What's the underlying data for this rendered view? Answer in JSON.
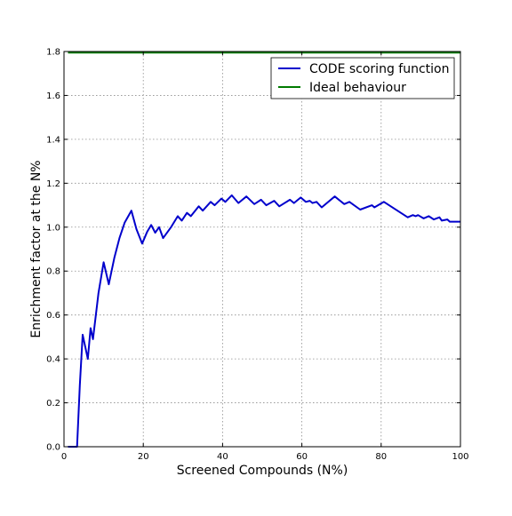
{
  "chart_data": {
    "type": "line",
    "title": "",
    "xlabel": "Screened Compounds (N%)",
    "ylabel": "Enrichment factor at the N%",
    "xlim": [
      0,
      100
    ],
    "ylim": [
      0,
      1.8
    ],
    "xticks": [
      0,
      20,
      40,
      60,
      80,
      100
    ],
    "yticks": [
      0.0,
      0.2,
      0.4,
      0.6,
      0.8,
      1.0,
      1.2,
      1.4,
      1.6,
      1.8
    ],
    "grid": true,
    "legend_position": "top-right",
    "series": [
      {
        "name": "CODE scoring function",
        "color": "#0000cc",
        "points": [
          [
            1,
            0.0
          ],
          [
            3.3,
            0.0
          ],
          [
            4,
            0.28
          ],
          [
            4.7,
            0.51
          ],
          [
            6,
            0.4
          ],
          [
            6.7,
            0.54
          ],
          [
            7.3,
            0.49
          ],
          [
            8.7,
            0.7
          ],
          [
            10,
            0.84
          ],
          [
            11.3,
            0.74
          ],
          [
            12.7,
            0.86
          ],
          [
            14,
            0.95
          ],
          [
            15.3,
            1.02
          ],
          [
            17,
            1.075
          ],
          [
            18.3,
            0.99
          ],
          [
            19.7,
            0.925
          ],
          [
            21,
            0.98
          ],
          [
            22,
            1.01
          ],
          [
            23,
            0.975
          ],
          [
            24,
            1.0
          ],
          [
            25,
            0.95
          ],
          [
            27,
            1.0
          ],
          [
            28.7,
            1.05
          ],
          [
            29.7,
            1.03
          ],
          [
            31,
            1.065
          ],
          [
            32,
            1.05
          ],
          [
            34,
            1.095
          ],
          [
            35,
            1.075
          ],
          [
            37,
            1.115
          ],
          [
            38,
            1.1
          ],
          [
            39.7,
            1.13
          ],
          [
            40.7,
            1.115
          ],
          [
            42.3,
            1.145
          ],
          [
            44,
            1.11
          ],
          [
            46,
            1.14
          ],
          [
            48,
            1.105
          ],
          [
            49.7,
            1.125
          ],
          [
            51,
            1.1
          ],
          [
            53,
            1.12
          ],
          [
            54.3,
            1.095
          ],
          [
            57,
            1.125
          ],
          [
            58,
            1.11
          ],
          [
            59.7,
            1.135
          ],
          [
            61,
            1.115
          ],
          [
            62,
            1.12
          ],
          [
            62.7,
            1.11
          ],
          [
            63.7,
            1.115
          ],
          [
            65,
            1.09
          ],
          [
            68.3,
            1.14
          ],
          [
            70.7,
            1.105
          ],
          [
            72,
            1.115
          ],
          [
            74.7,
            1.08
          ],
          [
            77.7,
            1.1
          ],
          [
            78.3,
            1.09
          ],
          [
            80.7,
            1.115
          ],
          [
            86.7,
            1.045
          ],
          [
            88,
            1.055
          ],
          [
            88.7,
            1.05
          ],
          [
            89.3,
            1.055
          ],
          [
            90.7,
            1.04
          ],
          [
            92,
            1.05
          ],
          [
            93.3,
            1.035
          ],
          [
            94.7,
            1.045
          ],
          [
            95.3,
            1.03
          ],
          [
            96.7,
            1.035
          ],
          [
            97.3,
            1.025
          ],
          [
            100,
            1.025
          ]
        ]
      },
      {
        "name": "Ideal behaviour",
        "color": "#007a00",
        "points": [
          [
            1,
            1.795
          ],
          [
            100,
            1.795
          ]
        ]
      }
    ]
  }
}
